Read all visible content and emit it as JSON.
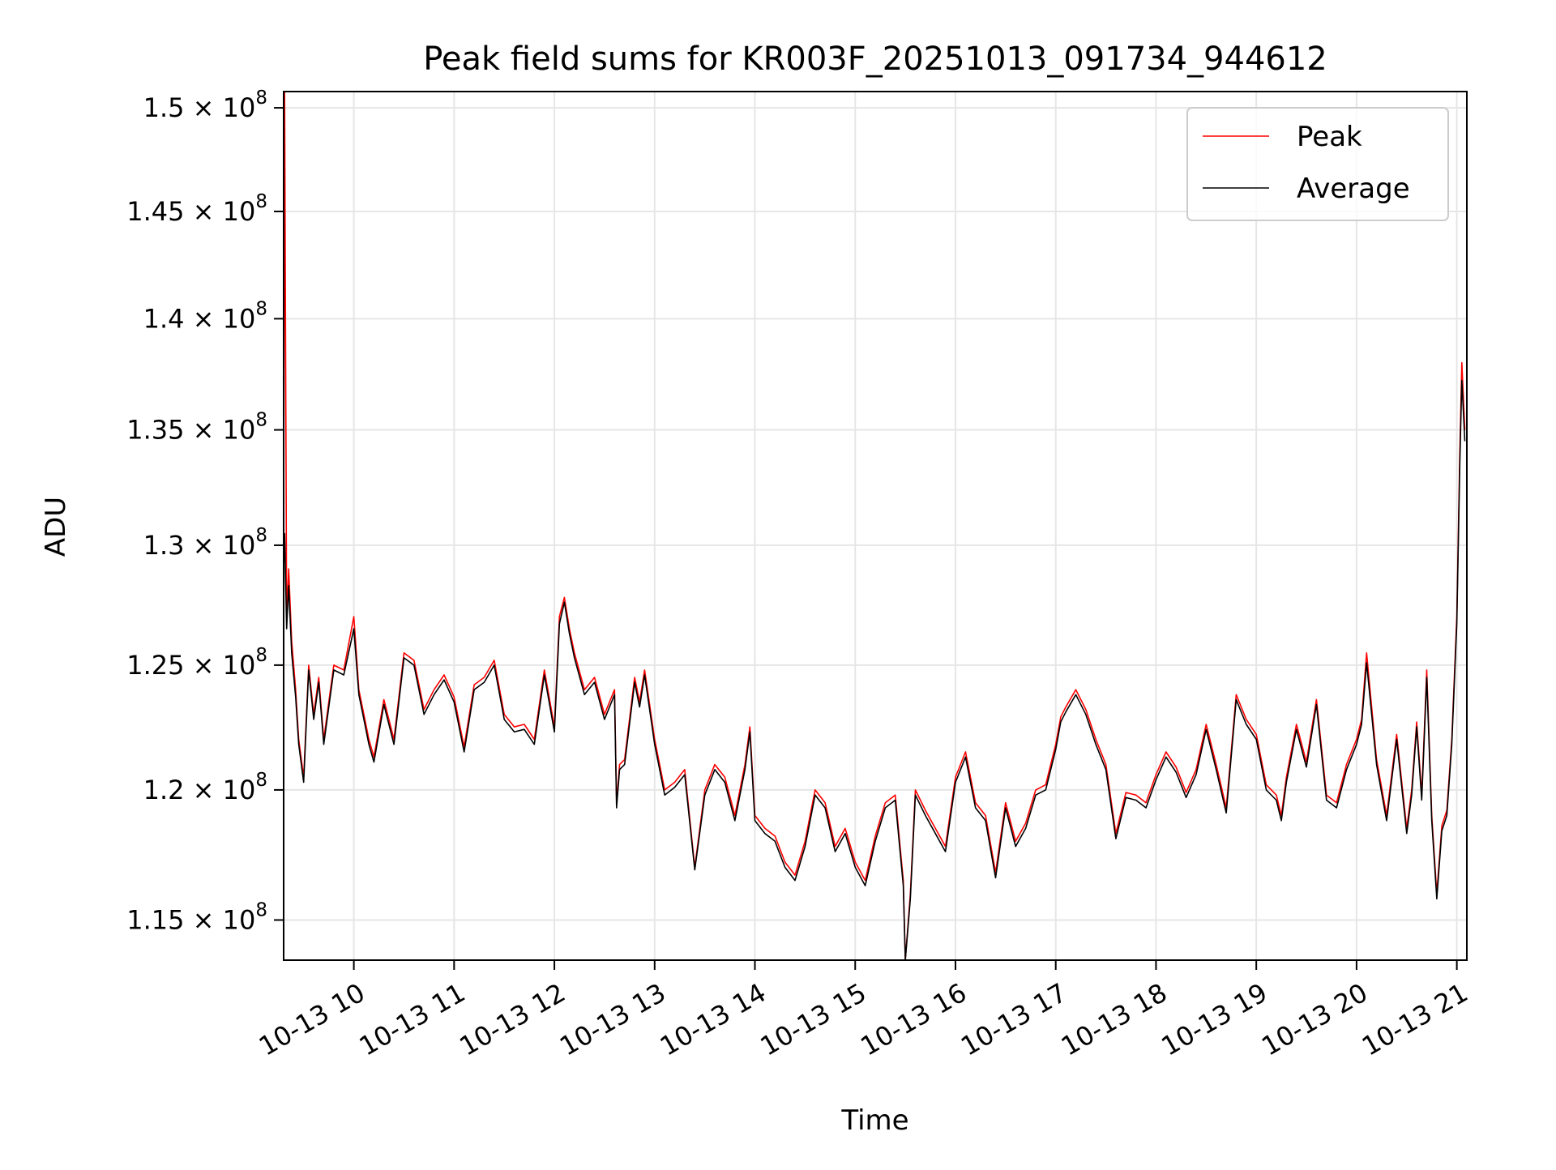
{
  "chart_data": {
    "type": "line",
    "title": "Peak field sums for KR003F_20251013_091734_944612",
    "xlabel": "Time",
    "ylabel": "ADU",
    "x_tick_labels": [
      "10-13 10",
      "10-13 11",
      "10-13 12",
      "10-13 13",
      "10-13 14",
      "10-13 15",
      "10-13 16",
      "10-13 17",
      "10-13 18",
      "10-13 19",
      "10-13 20",
      "10-13 21"
    ],
    "x_tick_hours": [
      10,
      11,
      12,
      13,
      14,
      15,
      16,
      17,
      18,
      19,
      20,
      21
    ],
    "xlim_hours": [
      9.3,
      21.1
    ],
    "y_scale": "log",
    "ylim": [
      113500000,
      150800000
    ],
    "y_ticks": [
      {
        "value": 115000000,
        "mantissa": "1.15",
        "base": "10",
        "exponent": "8"
      },
      {
        "value": 120000000,
        "mantissa": "1.2",
        "base": "10",
        "exponent": "8"
      },
      {
        "value": 125000000,
        "mantissa": "1.25",
        "base": "10",
        "exponent": "8"
      },
      {
        "value": 130000000,
        "mantissa": "1.3",
        "base": "10",
        "exponent": "8"
      },
      {
        "value": 135000000,
        "mantissa": "1.35",
        "base": "10",
        "exponent": "8"
      },
      {
        "value": 140000000,
        "mantissa": "1.4",
        "base": "10",
        "exponent": "8"
      },
      {
        "value": 145000000,
        "mantissa": "1.45",
        "base": "10",
        "exponent": "8"
      },
      {
        "value": 150000000,
        "mantissa": "1.5",
        "base": "10",
        "exponent": "8"
      }
    ],
    "grid": true,
    "legend_position": "top-right",
    "series": [
      {
        "name": "Peak",
        "color": "#ff0000",
        "x_hours": [
          9.3,
          9.31,
          9.33,
          9.35,
          9.38,
          9.42,
          9.45,
          9.5,
          9.55,
          9.6,
          9.65,
          9.7,
          9.75,
          9.8,
          9.9,
          10.0,
          10.05,
          10.1,
          10.15,
          10.2,
          10.3,
          10.4,
          10.5,
          10.6,
          10.7,
          10.8,
          10.9,
          11.0,
          11.1,
          11.2,
          11.3,
          11.4,
          11.5,
          11.6,
          11.7,
          11.8,
          11.9,
          12.0,
          12.05,
          12.1,
          12.15,
          12.2,
          12.3,
          12.4,
          12.5,
          12.6,
          12.62,
          12.65,
          12.7,
          12.8,
          12.85,
          12.9,
          13.0,
          13.1,
          13.2,
          13.3,
          13.4,
          13.5,
          13.6,
          13.7,
          13.8,
          13.9,
          13.95,
          14.0,
          14.1,
          14.2,
          14.3,
          14.4,
          14.5,
          14.6,
          14.7,
          14.8,
          14.9,
          15.0,
          15.1,
          15.2,
          15.3,
          15.4,
          15.48,
          15.5,
          15.55,
          15.6,
          15.7,
          15.8,
          15.9,
          16.0,
          16.1,
          16.2,
          16.3,
          16.4,
          16.5,
          16.6,
          16.7,
          16.8,
          16.9,
          17.0,
          17.05,
          17.1,
          17.2,
          17.3,
          17.4,
          17.5,
          17.6,
          17.7,
          17.8,
          17.9,
          18.0,
          18.1,
          18.2,
          18.3,
          18.4,
          18.5,
          18.6,
          18.7,
          18.8,
          18.9,
          19.0,
          19.1,
          19.2,
          19.25,
          19.3,
          19.4,
          19.5,
          19.6,
          19.7,
          19.8,
          19.9,
          20.0,
          20.05,
          20.1,
          20.2,
          20.3,
          20.4,
          20.5,
          20.55,
          20.6,
          20.65,
          20.7,
          20.75,
          20.8,
          20.85,
          20.9,
          20.95,
          21.0,
          21.03,
          21.05,
          21.08
        ],
        "values": [
          130000000,
          150800000,
          127000000,
          129000000,
          126000000,
          124000000,
          122000000,
          120500000,
          125000000,
          123000000,
          124500000,
          122000000,
          123500000,
          125000000,
          124800000,
          127000000,
          124000000,
          123000000,
          122000000,
          121300000,
          123600000,
          122000000,
          125500000,
          125200000,
          123200000,
          124000000,
          124600000,
          123700000,
          121700000,
          124200000,
          124500000,
          125200000,
          123000000,
          122500000,
          122600000,
          122000000,
          124800000,
          122500000,
          127000000,
          127800000,
          126500000,
          125500000,
          124000000,
          124500000,
          123000000,
          124000000,
          119500000,
          121000000,
          121200000,
          124500000,
          123500000,
          124800000,
          122000000,
          120000000,
          120300000,
          120800000,
          117000000,
          120000000,
          121000000,
          120500000,
          119000000,
          121000000,
          122500000,
          119000000,
          118500000,
          118200000,
          117200000,
          116700000,
          118000000,
          120000000,
          119500000,
          117800000,
          118500000,
          117200000,
          116500000,
          118200000,
          119500000,
          119800000,
          116500000,
          113500000,
          116000000,
          120000000,
          119200000,
          118500000,
          117800000,
          120500000,
          121500000,
          119500000,
          119000000,
          116800000,
          119500000,
          118000000,
          118700000,
          120000000,
          120200000,
          121800000,
          122900000,
          123300000,
          124000000,
          123200000,
          122000000,
          121000000,
          118300000,
          119900000,
          119800000,
          119500000,
          120600000,
          121500000,
          120900000,
          119900000,
          120800000,
          122600000,
          121000000,
          119300000,
          123800000,
          122800000,
          122200000,
          120200000,
          119800000,
          119000000,
          120500000,
          122600000,
          121100000,
          123600000,
          119800000,
          119500000,
          121000000,
          122000000,
          122800000,
          125500000,
          121200000,
          119000000,
          122200000,
          118500000,
          120000000,
          122700000,
          119800000,
          124800000,
          119000000,
          116000000,
          118600000,
          119200000,
          122000000,
          127000000,
          134000000,
          138000000,
          135000000
        ]
      },
      {
        "name": "Average",
        "color": "#000000",
        "x_hours": [
          9.3,
          9.31,
          9.33,
          9.35,
          9.38,
          9.42,
          9.45,
          9.5,
          9.55,
          9.6,
          9.65,
          9.7,
          9.75,
          9.8,
          9.9,
          10.0,
          10.05,
          10.1,
          10.15,
          10.2,
          10.3,
          10.4,
          10.5,
          10.6,
          10.7,
          10.8,
          10.9,
          11.0,
          11.1,
          11.2,
          11.3,
          11.4,
          11.5,
          11.6,
          11.7,
          11.8,
          11.9,
          12.0,
          12.05,
          12.1,
          12.15,
          12.2,
          12.3,
          12.4,
          12.5,
          12.6,
          12.62,
          12.65,
          12.7,
          12.8,
          12.85,
          12.9,
          13.0,
          13.1,
          13.2,
          13.3,
          13.4,
          13.5,
          13.6,
          13.7,
          13.8,
          13.9,
          13.95,
          14.0,
          14.1,
          14.2,
          14.3,
          14.4,
          14.5,
          14.6,
          14.7,
          14.8,
          14.9,
          15.0,
          15.1,
          15.2,
          15.3,
          15.4,
          15.48,
          15.5,
          15.55,
          15.6,
          15.7,
          15.8,
          15.9,
          16.0,
          16.1,
          16.2,
          16.3,
          16.4,
          16.5,
          16.6,
          16.7,
          16.8,
          16.9,
          17.0,
          17.05,
          17.1,
          17.2,
          17.3,
          17.4,
          17.5,
          17.6,
          17.7,
          17.8,
          17.9,
          18.0,
          18.1,
          18.2,
          18.3,
          18.4,
          18.5,
          18.6,
          18.7,
          18.8,
          18.9,
          19.0,
          19.1,
          19.2,
          19.25,
          19.3,
          19.4,
          19.5,
          19.6,
          19.7,
          19.8,
          19.9,
          20.0,
          20.05,
          20.1,
          20.2,
          20.3,
          20.4,
          20.5,
          20.55,
          20.6,
          20.65,
          20.7,
          20.75,
          20.8,
          20.85,
          20.9,
          20.95,
          21.0,
          21.03,
          21.05,
          21.08
        ],
        "values": [
          129000000,
          130500000,
          126500000,
          128300000,
          125500000,
          123700000,
          121800000,
          120300000,
          124800000,
          122800000,
          124300000,
          121800000,
          123300000,
          124800000,
          124600000,
          126500000,
          123800000,
          122800000,
          121800000,
          121100000,
          123400000,
          121800000,
          125300000,
          125000000,
          123000000,
          123800000,
          124400000,
          123500000,
          121500000,
          124000000,
          124300000,
          125000000,
          122800000,
          122300000,
          122400000,
          121800000,
          124600000,
          122300000,
          126700000,
          127600000,
          126300000,
          125300000,
          123800000,
          124300000,
          122800000,
          123800000,
          119300000,
          120800000,
          121000000,
          124300000,
          123300000,
          124600000,
          121800000,
          119800000,
          120100000,
          120600000,
          116900000,
          119800000,
          120800000,
          120300000,
          118800000,
          120800000,
          122300000,
          118800000,
          118300000,
          118000000,
          117000000,
          116500000,
          117800000,
          119800000,
          119300000,
          117600000,
          118300000,
          117000000,
          116300000,
          118000000,
          119300000,
          119600000,
          116300000,
          113500000,
          115800000,
          119800000,
          119000000,
          118300000,
          117600000,
          120300000,
          121300000,
          119300000,
          118800000,
          116600000,
          119300000,
          117800000,
          118500000,
          119800000,
          120000000,
          121600000,
          122700000,
          123100000,
          123800000,
          123000000,
          121800000,
          120800000,
          118100000,
          119700000,
          119600000,
          119300000,
          120400000,
          121300000,
          120700000,
          119700000,
          120600000,
          122400000,
          120800000,
          119100000,
          123600000,
          122600000,
          122000000,
          120000000,
          119600000,
          118800000,
          120300000,
          122400000,
          120900000,
          123400000,
          119600000,
          119300000,
          120800000,
          121800000,
          122600000,
          125100000,
          121000000,
          118800000,
          122000000,
          118300000,
          119800000,
          122500000,
          119600000,
          124500000,
          118800000,
          115800000,
          118400000,
          119000000,
          121800000,
          126700000,
          133500000,
          137200000,
          134500000
        ]
      }
    ]
  }
}
